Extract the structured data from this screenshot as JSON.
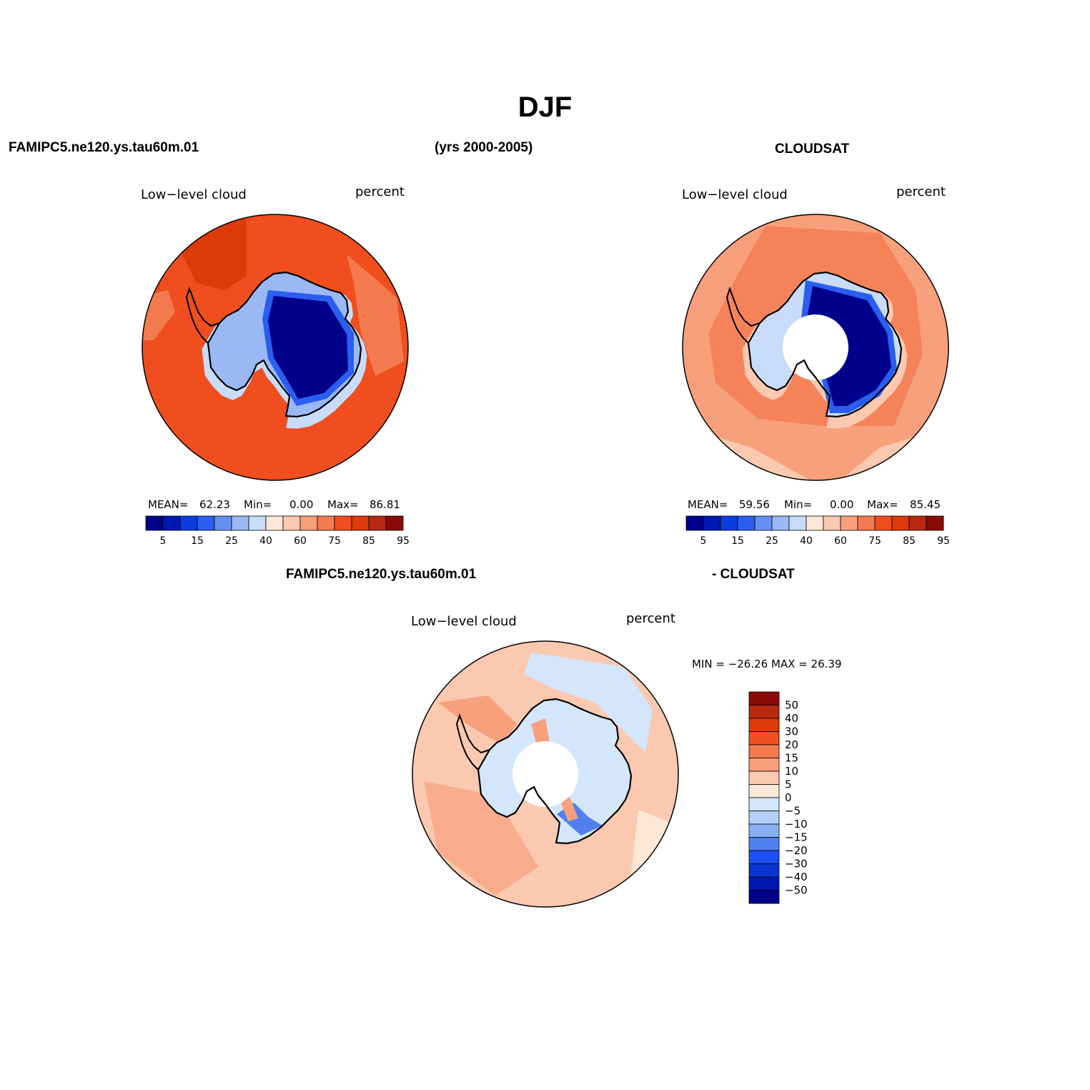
{
  "title": "DJF",
  "header": {
    "model_name": "FAMIPC5.ne120.ys.tau60m.01",
    "years": "(yrs 2000-2005)",
    "obs_name": "CLOUDSAT"
  },
  "panels": [
    {
      "id": "model",
      "variable": "Low−level cloud",
      "units": "percent",
      "stats": {
        "mean_label": "MEAN=",
        "mean": "62.23",
        "min_label": "Min=",
        "min": "0.00",
        "max_label": "Max=",
        "max": "86.81"
      }
    },
    {
      "id": "obs",
      "variable": "Low−level cloud",
      "units": "percent",
      "stats": {
        "mean_label": "MEAN=",
        "mean": "59.56",
        "min_label": "Min=",
        "min": "0.00",
        "max_label": "Max=",
        "max": "85.45"
      }
    },
    {
      "id": "diff",
      "variable": "Low−level cloud",
      "units": "percent",
      "title_left": "FAMIPC5.ne120.ys.tau60m.01",
      "title_right": "- CLOUDSAT",
      "stats": {
        "text": "MIN = −26.26  MAX =   26.39"
      }
    }
  ],
  "colorbar_abs": {
    "colors": [
      "#00008a",
      "#0018b0",
      "#0a3ce0",
      "#2a5ef0",
      "#6690f0",
      "#9ab8f4",
      "#c8dcfa",
      "#fde8d8",
      "#fbc8b0",
      "#f8a07c",
      "#f47a50",
      "#f04e1e",
      "#dc3a08",
      "#b82810",
      "#8a0a08"
    ],
    "tick_labels": [
      "5",
      "15",
      "25",
      "40",
      "60",
      "75",
      "85",
      "95"
    ]
  },
  "colorbar_diff": {
    "colors": [
      "#8a0a08",
      "#b82810",
      "#dc3a08",
      "#f04e1e",
      "#f47a50",
      "#f8a07c",
      "#fbc8b0",
      "#fde8d8",
      "#d4e6fc",
      "#b4d0fa",
      "#8ab0f4",
      "#5080f0",
      "#1c50f0",
      "#0a34d0",
      "#0018b0",
      "#00008a"
    ],
    "tick_labels": [
      "50",
      "40",
      "30",
      "20",
      "15",
      "10",
      "5",
      "0",
      "−5",
      "−10",
      "−15",
      "−20",
      "−30",
      "−40",
      "−50"
    ]
  },
  "map_colors": {
    "ocean_model": "#f04e1e",
    "ocean_model_dark": "#dc3a08",
    "ocean_model_light": "#f47a50",
    "ocean_obs": "#f8a07c",
    "ocean_obs_dark": "#f47a50",
    "ocean_obs_light": "#fbc8b0",
    "ice_low": "#00008a",
    "ice_mid": "#2a5ef0",
    "ice_light": "#9ab8f4",
    "ice_pale": "#c8dcfa",
    "diff_ocean": "#fbc8b0",
    "diff_warm": "#f8a07c",
    "diff_pale": "#fde8d8",
    "diff_cool": "#d4e6fc",
    "diff_blue": "#5080f0"
  }
}
